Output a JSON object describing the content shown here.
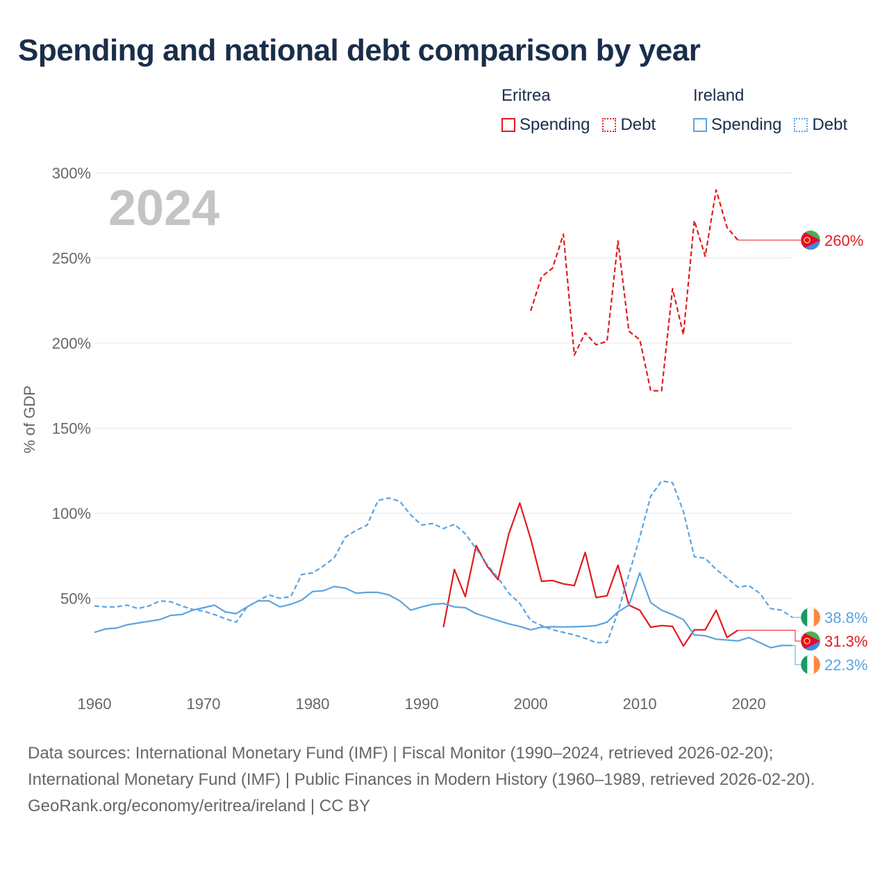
{
  "title": "Spending and national debt comparison by year",
  "legend": {
    "eritrea": {
      "country": "Eritrea",
      "spending": "Spending",
      "debt": "Debt"
    },
    "ireland": {
      "country": "Ireland",
      "spending": "Spending",
      "debt": "Debt"
    }
  },
  "colors": {
    "eritrea": "#e31a1c",
    "ireland": "#5ba3e0",
    "grid": "#e6e6e6",
    "text": "#1a2e4a"
  },
  "footer": {
    "sources": "Data sources: International Monetary Fund (IMF) | Fiscal Monitor (1990–2024, retrieved 2026-02-20); International Monetary Fund (IMF) | Public Finances in Modern History (1960–1989, retrieved 2026-02-20).",
    "credit": "GeoRank.org/economy/eritrea/ireland | CC BY"
  },
  "chart_data": {
    "type": "line",
    "year_label": "2024",
    "ylabel": "% of GDP",
    "xlim": [
      1960,
      2024
    ],
    "ylim": [
      0,
      300
    ],
    "xticks": [
      1960,
      1970,
      1980,
      1990,
      2000,
      2010,
      2020
    ],
    "yticks": [
      {
        "value": 50,
        "label": "50%"
      },
      {
        "value": 100,
        "label": "100%"
      },
      {
        "value": 150,
        "label": "150%"
      },
      {
        "value": 200,
        "label": "200%"
      },
      {
        "value": 250,
        "label": "250%"
      },
      {
        "value": 300,
        "label": "300%"
      }
    ],
    "series": [
      {
        "name": "Eritrea Spending",
        "country": "eritrea",
        "style": "solid",
        "color": "#e31a1c",
        "end_label": "31.3%",
        "flag": "eritrea",
        "x": [
          1992,
          1993,
          1994,
          1995,
          1996,
          1997,
          1998,
          1999,
          2000,
          2001,
          2002,
          2003,
          2004,
          2005,
          2006,
          2007,
          2008,
          2009,
          2010,
          2011,
          2012,
          2013,
          2014,
          2015,
          2016,
          2017,
          2018,
          2019
        ],
        "y": [
          33,
          67,
          51,
          81,
          69,
          61,
          88,
          106,
          85,
          60,
          60.5,
          58.5,
          57.5,
          77,
          50.5,
          51.5,
          69.5,
          46,
          43,
          33,
          34,
          33.5,
          22,
          31.5,
          31.5,
          43,
          27,
          31.3
        ]
      },
      {
        "name": "Eritrea Debt",
        "country": "eritrea",
        "style": "dashed",
        "color": "#e31a1c",
        "end_label": "260%",
        "flag": "eritrea",
        "x": [
          2000,
          2001,
          2002,
          2003,
          2004,
          2005,
          2006,
          2007,
          2008,
          2009,
          2010,
          2011,
          2012,
          2013,
          2014,
          2015,
          2016,
          2017,
          2018,
          2019
        ],
        "y": [
          219,
          239,
          244,
          264,
          193,
          206,
          199,
          201,
          260,
          207,
          202,
          172,
          172,
          232,
          205,
          272,
          251,
          290,
          268,
          260.5
        ]
      },
      {
        "name": "Ireland Spending",
        "country": "ireland",
        "style": "solid",
        "color": "#5ba3e0",
        "end_label": "22.3%",
        "flag": "ireland",
        "x": [
          1960,
          1961,
          1962,
          1963,
          1964,
          1965,
          1966,
          1967,
          1968,
          1969,
          1970,
          1971,
          1972,
          1973,
          1974,
          1975,
          1976,
          1977,
          1978,
          1979,
          1980,
          1981,
          1982,
          1983,
          1984,
          1985,
          1986,
          1987,
          1988,
          1989,
          1990,
          1991,
          1992,
          1993,
          1994,
          1995,
          1996,
          1997,
          1998,
          1999,
          2000,
          2001,
          2002,
          2003,
          2004,
          2005,
          2006,
          2007,
          2008,
          2009,
          2010,
          2011,
          2012,
          2013,
          2014,
          2015,
          2016,
          2017,
          2018,
          2019,
          2020,
          2021,
          2022,
          2023,
          2024
        ],
        "y": [
          30,
          32,
          32.5,
          34.5,
          35.5,
          36.5,
          37.5,
          40,
          40.5,
          43,
          44.5,
          46,
          42,
          41,
          45,
          48.5,
          48.5,
          45,
          46.5,
          49,
          54,
          54.5,
          57,
          56,
          53,
          53.5,
          53.5,
          52,
          48.5,
          43,
          45,
          46.5,
          47,
          45,
          44.5,
          41,
          39,
          37,
          35,
          33.5,
          31.5,
          33,
          33.3,
          33.2,
          33.3,
          33.5,
          34,
          36,
          42,
          46,
          65,
          47.5,
          43,
          40.5,
          37.5,
          28.5,
          28,
          26,
          25.5,
          25,
          27,
          24,
          21,
          22.3,
          22.3
        ]
      },
      {
        "name": "Ireland Debt",
        "country": "ireland",
        "style": "dashed",
        "color": "#5ba3e0",
        "end_label": "38.8%",
        "flag": "ireland",
        "x": [
          1960,
          1961,
          1962,
          1963,
          1964,
          1965,
          1966,
          1967,
          1968,
          1969,
          1970,
          1971,
          1972,
          1973,
          1974,
          1975,
          1976,
          1977,
          1978,
          1979,
          1980,
          1981,
          1982,
          1983,
          1984,
          1985,
          1986,
          1987,
          1988,
          1989,
          1990,
          1991,
          1992,
          1993,
          1994,
          1995,
          1996,
          1997,
          1998,
          1999,
          2000,
          2001,
          2002,
          2003,
          2004,
          2005,
          2006,
          2007,
          2008,
          2009,
          2010,
          2011,
          2012,
          2013,
          2014,
          2015,
          2016,
          2017,
          2018,
          2019,
          2020,
          2021,
          2022,
          2023,
          2024
        ],
        "y": [
          45.5,
          45,
          45,
          46,
          44,
          45.5,
          48.5,
          48,
          45.5,
          43.5,
          42.5,
          40.5,
          38,
          36,
          45,
          48.5,
          52,
          50,
          51,
          64,
          65,
          69,
          74,
          86,
          90,
          93,
          107.5,
          109,
          107,
          99,
          93,
          94,
          91,
          93.5,
          88,
          79,
          70,
          62,
          53,
          47,
          37,
          34,
          31.5,
          30,
          28.5,
          26.5,
          24,
          24,
          42,
          64,
          86,
          110,
          119,
          118,
          101,
          74.5,
          73.5,
          67,
          62,
          56.5,
          57.5,
          53,
          44,
          43,
          38.8
        ]
      }
    ]
  }
}
